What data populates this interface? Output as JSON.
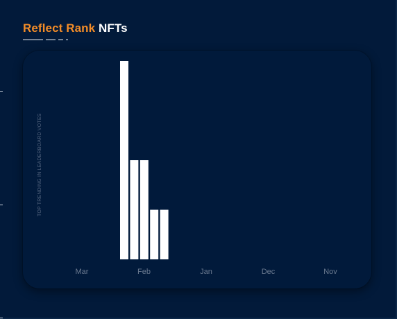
{
  "header": {
    "title_accent": "Reflect Rank",
    "title_rest": "NFTs"
  },
  "colors": {
    "background": "#021a3a",
    "card": "#011a3b",
    "accent": "#f28c28",
    "bar": "#ffffff",
    "axis_text": "#6b7a90"
  },
  "chart_data": {
    "type": "bar",
    "title": "",
    "xlabel": "",
    "ylabel": "TOP TRENDING IN LEADERBOARD VOTES",
    "x_ticks": [
      "Mar",
      "Feb",
      "Jan",
      "Dec",
      "Nov"
    ],
    "series": [
      {
        "values": [
          100,
          50,
          50,
          25,
          25
        ]
      }
    ],
    "ylim": [
      0,
      100
    ],
    "grid": false,
    "legend": "none"
  }
}
